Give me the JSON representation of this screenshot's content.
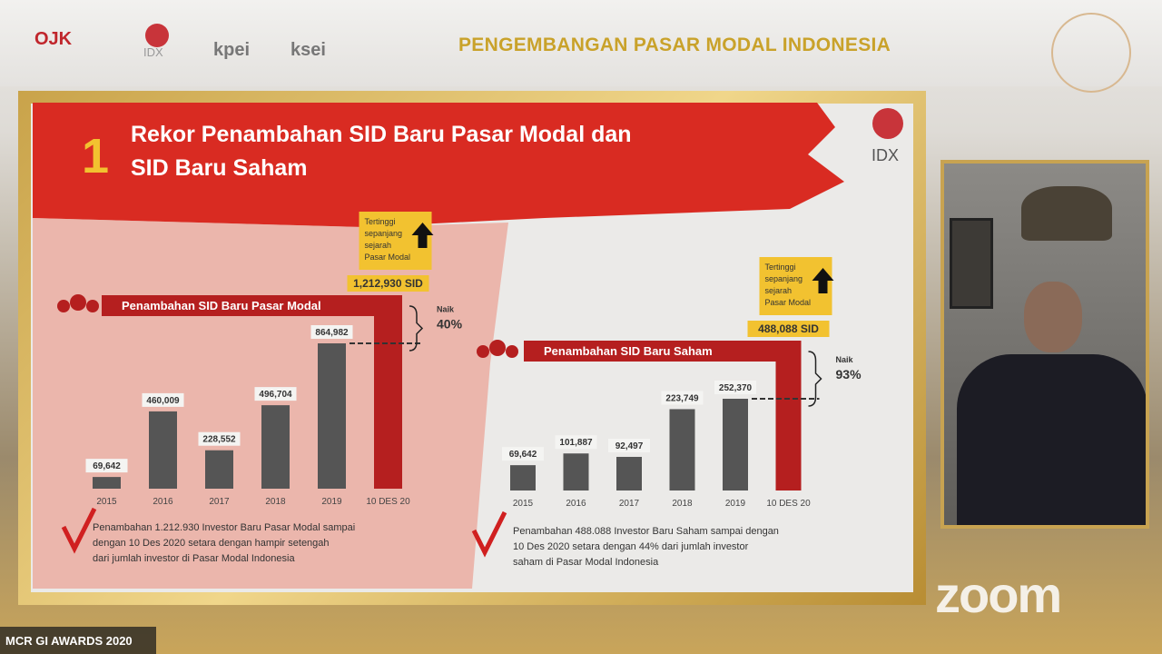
{
  "header": {
    "title": "PENGEMBANGAN PASAR MODAL INDONESIA",
    "logos": [
      "OJK",
      "IDX",
      "kpei",
      "ksei"
    ]
  },
  "slide": {
    "number": "1",
    "title_line1": "Rekor Penambahan SID Baru Pasar Modal dan",
    "title_line2": "SID Baru Saham",
    "logo": "IDX"
  },
  "chart_data": [
    {
      "type": "bar",
      "title": "Penambahan SID Baru Pasar Modal",
      "categories": [
        "2015",
        "2016",
        "2017",
        "2018",
        "2019",
        "10 DES 20"
      ],
      "values": [
        69642,
        460009,
        228552,
        496704,
        864982,
        1212930
      ],
      "data_labels": [
        "69,642",
        "460,009",
        "228,552",
        "496,704",
        "864,982",
        "1,212,930 SID"
      ],
      "highlight_color": "#b51f1f",
      "bar_color": "#555555",
      "callout": "Tertinggi sepanjang sejarah Pasar Modal",
      "growth_label": "Naik",
      "growth": "40%",
      "note": "Penambahan 1.212.930 Investor Baru Pasar Modal sampai dengan 10 Des 2020 setara dengan hampir setengah dari jumlah investor di Pasar Modal Indonesia"
    },
    {
      "type": "bar",
      "title": "Penambahan SID Baru Saham",
      "categories": [
        "2015",
        "2016",
        "2017",
        "2018",
        "2019",
        "10 DES 20"
      ],
      "values": [
        69642,
        101887,
        92497,
        223749,
        252370,
        488088
      ],
      "data_labels": [
        "69,642",
        "101,887",
        "92,497",
        "223,749",
        "252,370",
        "488,088 SID"
      ],
      "highlight_color": "#b51f1f",
      "bar_color": "#555555",
      "callout": "Tertinggi sepanjang sejarah Pasar Modal",
      "growth_label": "Naik",
      "growth": "93%",
      "note": "Penambahan 488.088 Investor Baru Saham sampai dengan 10 Des 2020 setara dengan 44% dari jumlah investor saham di Pasar Modal Indonesia"
    }
  ],
  "overlay": {
    "event_label": "MCR GI AWARDS 2020",
    "zoom_logo": "zoom"
  }
}
